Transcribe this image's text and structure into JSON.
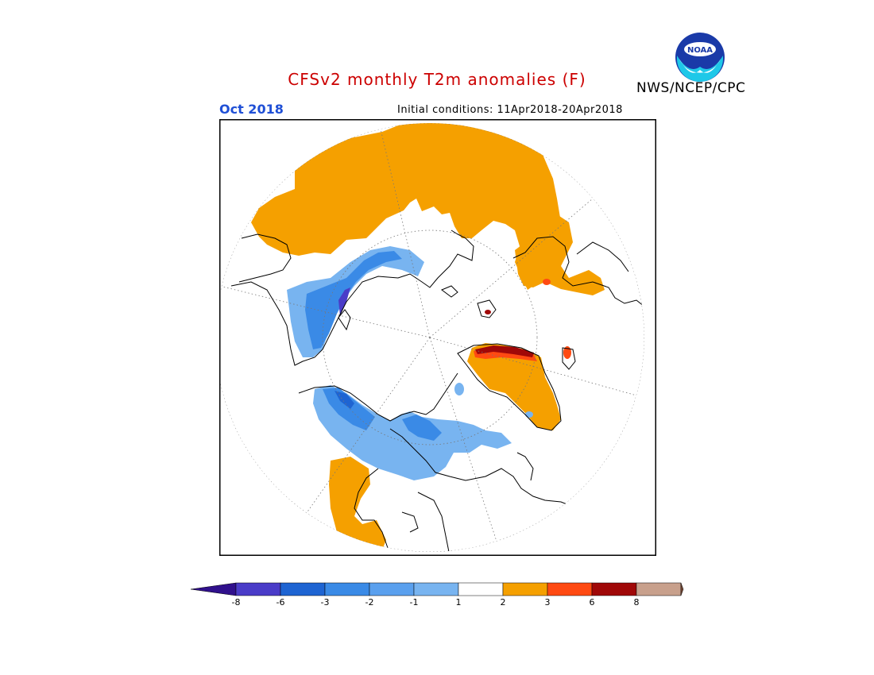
{
  "title": "CFSv2 monthly T2m anomalies (F)",
  "month_label": "Oct 2018",
  "initial_conditions": "Initial conditions: 11Apr2018-20Apr2018",
  "agency": "NWS/NCEP/CPC",
  "logo_text": "NOAA",
  "colors": {
    "title": "#cc0000",
    "month": "#1f4fd6",
    "orange": "#f5a000",
    "orange_red": "#ff4a12",
    "dark_red": "#a00808",
    "tan": "#c8a08c",
    "brown": "#7a4a38",
    "light_blue": "#78b4f0",
    "mid_blue": "#3a8ae6",
    "blue": "#1e64d2",
    "indigo": "#4a3cc8",
    "dark_indigo": "#30108c"
  },
  "legend": {
    "bins": [
      {
        "color": "#4a3cc8"
      },
      {
        "color": "#1e64d2"
      },
      {
        "color": "#3a8ae6"
      },
      {
        "color": "#5aa0ee"
      },
      {
        "color": "#78b4f0"
      },
      {
        "color": "#ffffff"
      },
      {
        "color": "#f5a000"
      },
      {
        "color": "#ff4a12"
      },
      {
        "color": "#a00808"
      },
      {
        "color": "#c8a08c"
      }
    ],
    "low_arrow_color": "#30108c",
    "high_arrow_color": "#7a4a38",
    "ticks": [
      "-8",
      "-6",
      "-3",
      "-2",
      "-1",
      "1",
      "2",
      "3",
      "6",
      "8"
    ]
  }
}
